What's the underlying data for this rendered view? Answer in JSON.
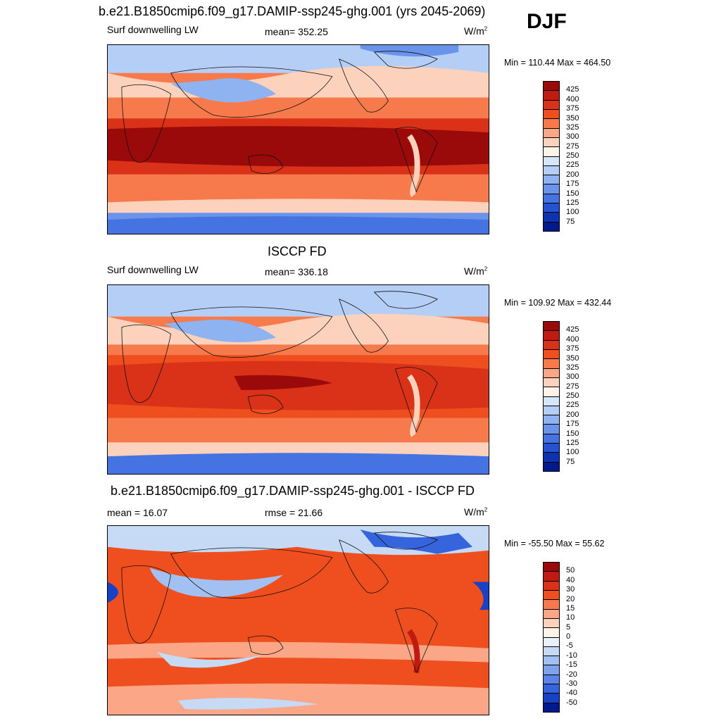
{
  "season": "DJF",
  "palette_main": [
    "#9b0a0a",
    "#c01a12",
    "#da3218",
    "#ef4e1f",
    "#f77a4c",
    "#fba686",
    "#fcd2bd",
    "#fff2e8",
    "#d6e6fa",
    "#b4cef5",
    "#8fb2f0",
    "#6a93ea",
    "#4673e2",
    "#2551d4",
    "#0d32b2",
    "#001a8c"
  ],
  "palette_diff": [
    "#9b0a0a",
    "#c01a12",
    "#da3218",
    "#ef4e1f",
    "#f77a4c",
    "#fba686",
    "#fcd2bd",
    "#fff2e8",
    "#e8f0fb",
    "#c6daf6",
    "#a2c0f1",
    "#7ea3ec",
    "#5a84e6",
    "#3664dd",
    "#1842c5",
    "#001a8c"
  ],
  "panels": [
    {
      "title": "b.e21.B1850cmip6.f09_g17.DAMIP-ssp245-ghg.001 (yrs 2045-2069)",
      "left": "Surf downwelling LW",
      "center": "mean= 352.25",
      "units": "W/m",
      "units_sup": "2",
      "minmax": "Min = 110.44 Max = 464.50",
      "ticks": [
        "425",
        "400",
        "375",
        "350",
        "325",
        "300",
        "275",
        "250",
        "225",
        "200",
        "175",
        "150",
        "125",
        "100",
        "75"
      ]
    },
    {
      "title": "ISCCP FD",
      "left": "Surf downwelling LW",
      "center": "mean= 336.18",
      "units": "W/m",
      "units_sup": "2",
      "minmax": "Min = 109.92 Max = 432.44",
      "ticks": [
        "425",
        "400",
        "375",
        "350",
        "325",
        "300",
        "275",
        "250",
        "225",
        "200",
        "175",
        "150",
        "125",
        "100",
        "75"
      ]
    },
    {
      "title": "b.e21.B1850cmip6.f09_g17.DAMIP-ssp245-ghg.001 - ISCCP FD",
      "left": "mean =  16.07",
      "center": "rmse =  21.66",
      "units": "W/m",
      "units_sup": "2",
      "minmax": "Min = -55.50 Max =  55.62",
      "ticks": [
        "50",
        "40",
        "30",
        "20",
        "15",
        "10",
        "5",
        "0",
        "-5",
        "-10",
        "-15",
        "-20",
        "-30",
        "-40",
        "-50"
      ]
    }
  ]
}
